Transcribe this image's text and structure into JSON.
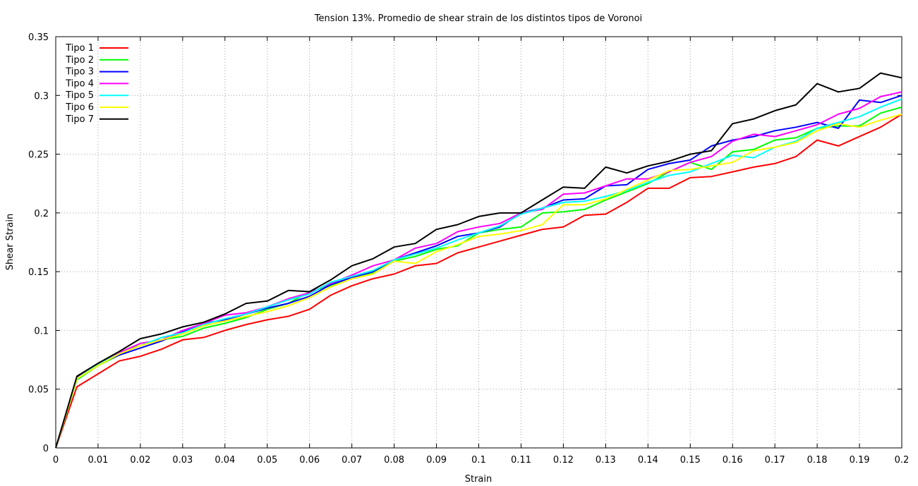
{
  "chart_data": {
    "type": "line",
    "title": "Tension 13%. Promedio de shear strain de los distintos tipos de Voronoi",
    "xlabel": "Strain",
    "ylabel": "Shear Strain",
    "xlim": [
      0,
      0.2
    ],
    "ylim": [
      0,
      0.35
    ],
    "grid": true,
    "legend_position": "top-left",
    "x_ticks": [
      "0",
      "0.01",
      "0.02",
      "0.03",
      "0.04",
      "0.05",
      "0.06",
      "0.07",
      "0.08",
      "0.09",
      "0.1",
      "0.11",
      "0.12",
      "0.13",
      "0.14",
      "0.15",
      "0.16",
      "0.17",
      "0.18",
      "0.19",
      "0.2"
    ],
    "y_ticks": [
      "0",
      "0.05",
      "0.1",
      "0.15",
      "0.2",
      "0.25",
      "0.3",
      "0.35"
    ],
    "x": [
      0,
      0.005,
      0.01,
      0.015,
      0.02,
      0.025,
      0.03,
      0.035,
      0.04,
      0.045,
      0.05,
      0.055,
      0.06,
      0.065,
      0.07,
      0.075,
      0.08,
      0.085,
      0.09,
      0.095,
      0.1,
      0.105,
      0.11,
      0.115,
      0.12,
      0.125,
      0.13,
      0.135,
      0.14,
      0.145,
      0.15,
      0.155,
      0.16,
      0.165,
      0.17,
      0.175,
      0.18,
      0.185,
      0.19,
      0.195,
      0.2
    ],
    "series": [
      {
        "name": "Tipo 1",
        "color": "#ff0000",
        "values": [
          0,
          0.052,
          0.063,
          0.074,
          0.078,
          0.084,
          0.092,
          0.094,
          0.1,
          0.105,
          0.109,
          0.112,
          0.118,
          0.13,
          0.138,
          0.144,
          0.148,
          0.155,
          0.157,
          0.166,
          0.171,
          0.176,
          0.181,
          0.186,
          0.188,
          0.198,
          0.199,
          0.209,
          0.221,
          0.221,
          0.23,
          0.231,
          0.235,
          0.239,
          0.242,
          0.248,
          0.262,
          0.257,
          0.265,
          0.273,
          0.284
        ]
      },
      {
        "name": "Tipo 2",
        "color": "#00ff00",
        "values": [
          0,
          0.058,
          0.07,
          0.079,
          0.089,
          0.092,
          0.095,
          0.102,
          0.106,
          0.111,
          0.118,
          0.123,
          0.133,
          0.138,
          0.145,
          0.149,
          0.159,
          0.163,
          0.169,
          0.172,
          0.183,
          0.186,
          0.188,
          0.2,
          0.201,
          0.203,
          0.211,
          0.218,
          0.225,
          0.235,
          0.243,
          0.237,
          0.252,
          0.254,
          0.262,
          0.264,
          0.272,
          0.274,
          0.274,
          0.285,
          0.29
        ]
      },
      {
        "name": "Tipo 3",
        "color": "#0000ff",
        "values": [
          0,
          0.06,
          0.071,
          0.079,
          0.085,
          0.091,
          0.099,
          0.106,
          0.109,
          0.114,
          0.119,
          0.123,
          0.129,
          0.139,
          0.145,
          0.15,
          0.16,
          0.166,
          0.172,
          0.18,
          0.183,
          0.188,
          0.2,
          0.204,
          0.211,
          0.212,
          0.223,
          0.224,
          0.237,
          0.242,
          0.245,
          0.257,
          0.262,
          0.265,
          0.27,
          0.273,
          0.277,
          0.272,
          0.296,
          0.294,
          0.3
        ]
      },
      {
        "name": "Tipo 4",
        "color": "#ff00ff",
        "values": [
          0,
          0.059,
          0.072,
          0.081,
          0.089,
          0.092,
          0.1,
          0.106,
          0.113,
          0.115,
          0.12,
          0.127,
          0.132,
          0.14,
          0.147,
          0.155,
          0.16,
          0.17,
          0.174,
          0.184,
          0.188,
          0.191,
          0.2,
          0.203,
          0.216,
          0.217,
          0.223,
          0.229,
          0.229,
          0.235,
          0.243,
          0.248,
          0.261,
          0.267,
          0.265,
          0.27,
          0.275,
          0.284,
          0.289,
          0.299,
          0.303
        ]
      },
      {
        "name": "Tipo 5",
        "color": "#00ffff",
        "values": [
          0,
          0.059,
          0.071,
          0.08,
          0.087,
          0.094,
          0.098,
          0.105,
          0.11,
          0.114,
          0.12,
          0.126,
          0.131,
          0.141,
          0.146,
          0.151,
          0.16,
          0.165,
          0.17,
          0.177,
          0.183,
          0.189,
          0.199,
          0.204,
          0.209,
          0.21,
          0.214,
          0.219,
          0.226,
          0.232,
          0.235,
          0.242,
          0.249,
          0.247,
          0.256,
          0.261,
          0.272,
          0.277,
          0.282,
          0.29,
          0.297
        ]
      },
      {
        "name": "Tipo 6",
        "color": "#ffff00",
        "values": [
          0,
          0.059,
          0.07,
          0.08,
          0.087,
          0.092,
          0.097,
          0.104,
          0.108,
          0.112,
          0.116,
          0.121,
          0.128,
          0.137,
          0.144,
          0.148,
          0.159,
          0.157,
          0.167,
          0.173,
          0.18,
          0.182,
          0.185,
          0.19,
          0.207,
          0.207,
          0.212,
          0.22,
          0.228,
          0.236,
          0.237,
          0.24,
          0.243,
          0.253,
          0.256,
          0.26,
          0.27,
          0.276,
          0.273,
          0.279,
          0.284
        ]
      },
      {
        "name": "Tipo 7",
        "color": "#000000",
        "values": [
          0,
          0.061,
          0.072,
          0.082,
          0.093,
          0.097,
          0.103,
          0.107,
          0.114,
          0.123,
          0.125,
          0.134,
          0.133,
          0.143,
          0.155,
          0.161,
          0.171,
          0.174,
          0.186,
          0.19,
          0.197,
          0.2,
          0.2,
          0.211,
          0.222,
          0.221,
          0.239,
          0.234,
          0.24,
          0.244,
          0.25,
          0.253,
          0.276,
          0.28,
          0.287,
          0.292,
          0.31,
          0.303,
          0.306,
          0.319,
          0.315
        ]
      }
    ]
  }
}
